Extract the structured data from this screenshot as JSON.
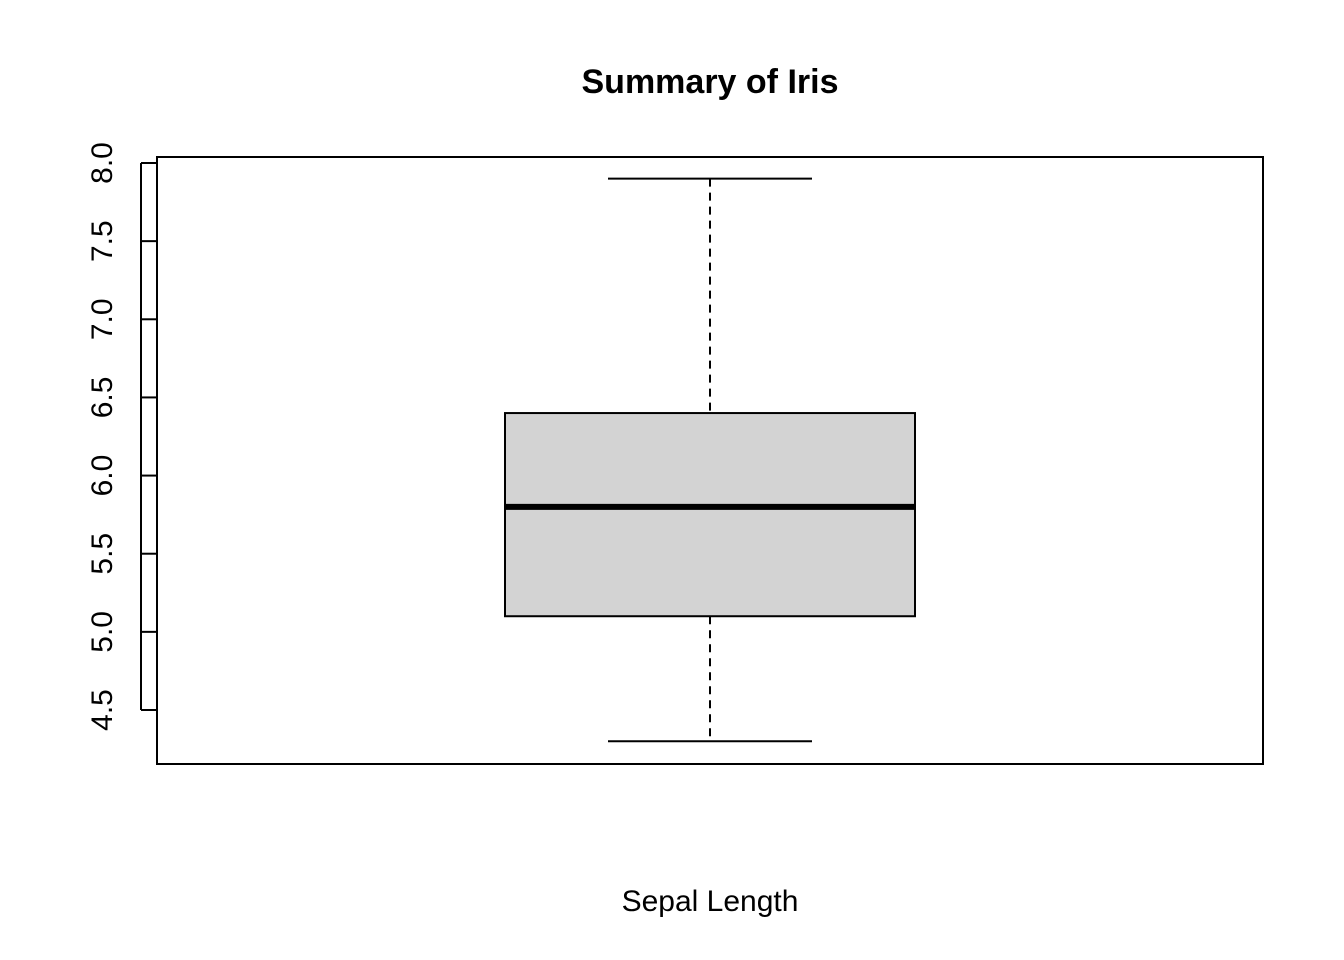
{
  "chart_data": {
    "type": "boxplot",
    "title": "Summary of Iris",
    "xlabel": "Sepal Length",
    "ylabel": "",
    "ylim": [
      4.3,
      7.9
    ],
    "yticks": [
      4.5,
      5.0,
      5.5,
      6.0,
      6.5,
      7.0,
      7.5,
      8.0
    ],
    "ytick_labels": [
      "4.5",
      "5.0",
      "5.5",
      "6.0",
      "6.5",
      "7.0",
      "7.5",
      "8.0"
    ],
    "box": {
      "min": 4.3,
      "q1": 5.1,
      "median": 5.8,
      "q3": 6.4,
      "max": 7.9,
      "fill": "#d3d3d3"
    },
    "grid": false
  }
}
